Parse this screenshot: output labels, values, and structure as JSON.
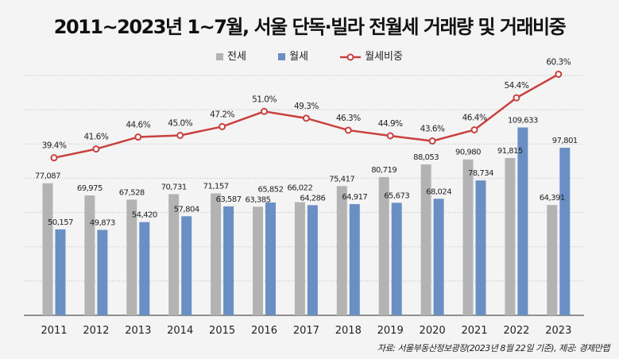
{
  "chart_data": {
    "type": "bar",
    "title": "2011~2023년 1~7월, 서울 단독·빌라 전월세 거래량 및 거래비중",
    "categories": [
      "2011",
      "2012",
      "2013",
      "2014",
      "2015",
      "2016",
      "2017",
      "2018",
      "2019",
      "2020",
      "2021",
      "2022",
      "2023"
    ],
    "series": [
      {
        "name": "전세",
        "type": "bar",
        "color": "#b3b3b3",
        "values": [
          77087,
          69975,
          67528,
          70731,
          71157,
          63385,
          66022,
          75417,
          80719,
          88053,
          90980,
          91815,
          64391
        ],
        "labels": [
          "77,087",
          "69,975",
          "67,528",
          "70,731",
          "71,157",
          "63,385",
          "66,022",
          "75,417",
          "80,719",
          "88,053",
          "90,980",
          "91,815",
          "64,391"
        ]
      },
      {
        "name": "월세",
        "type": "bar",
        "color": "#6a8fc4",
        "values": [
          50157,
          49873,
          54420,
          57804,
          63587,
          65852,
          64286,
          64917,
          65673,
          68024,
          78734,
          109633,
          97801
        ],
        "labels": [
          "50,157",
          "49,873",
          "54,420",
          "57,804",
          "63,587",
          "65,852",
          "64,286",
          "64,917",
          "65,673",
          "68,024",
          "78,734",
          "109,633",
          "97,801"
        ]
      },
      {
        "name": "월세비중",
        "type": "line",
        "color": "#c9413f",
        "values": [
          39.4,
          41.6,
          44.6,
          45.0,
          47.2,
          51.0,
          49.3,
          46.3,
          44.9,
          43.6,
          46.4,
          54.4,
          60.3
        ],
        "labels": [
          "39.4%",
          "41.6%",
          "44.6%",
          "45.0%",
          "47.2%",
          "51.0%",
          "49.3%",
          "46.3%",
          "44.9%",
          "43.6%",
          "46.4%",
          "54.4%",
          "60.3%"
        ]
      }
    ],
    "bar_ylim": [
      0,
      140000
    ],
    "line_ylim": [
      0,
      60
    ],
    "grid": true,
    "legend": "top-center"
  },
  "source": "자료: 서울부동산정보광장(2023년 8월 22일 기준), 제공: 경제만랩"
}
